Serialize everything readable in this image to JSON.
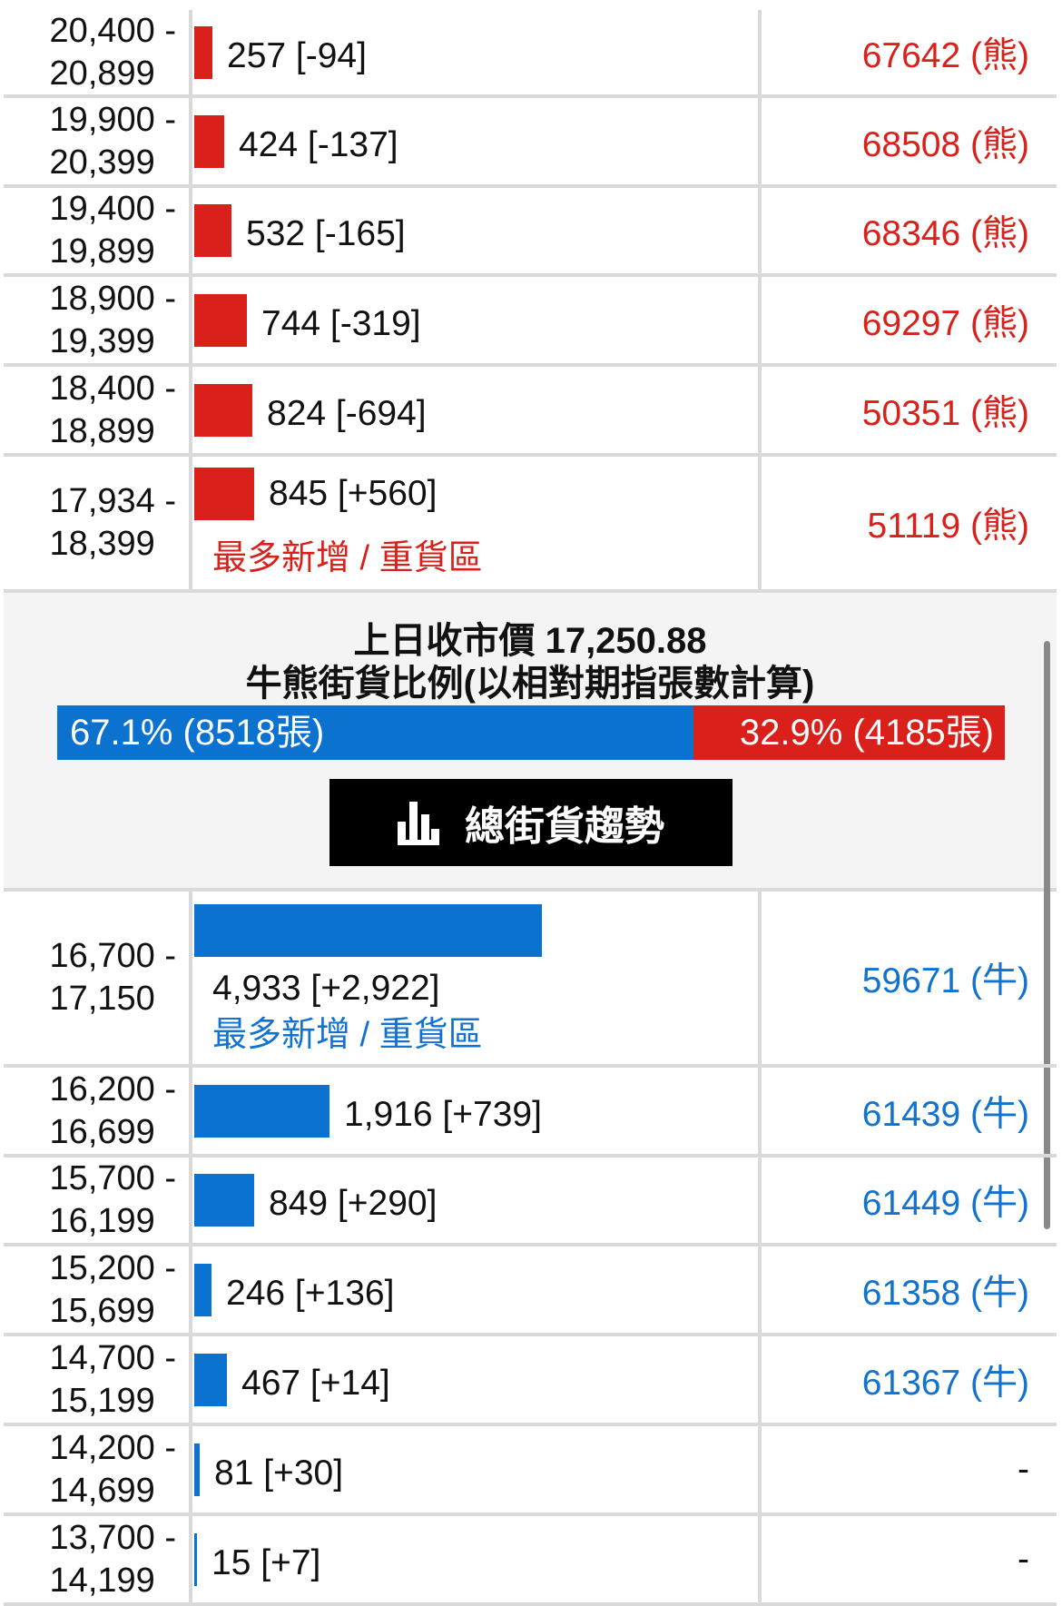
{
  "bear_rows": [
    {
      "range": "20,400 -\n20,899",
      "value": 257,
      "label": "257 [-94]",
      "count": "67642 (熊)"
    },
    {
      "range": "19,900 -\n20,399",
      "value": 424,
      "label": "424 [-137]",
      "count": "68508 (熊)"
    },
    {
      "range": "19,400 -\n19,899",
      "value": 532,
      "label": "532 [-165]",
      "count": "68346 (熊)"
    },
    {
      "range": "18,900 -\n19,399",
      "value": 744,
      "label": "744 [-319]",
      "count": "69297 (熊)"
    },
    {
      "range": "18,400 -\n18,899",
      "value": 824,
      "label": "824 [-694]",
      "count": "50351 (熊)"
    },
    {
      "range": "17,934 -\n18,399",
      "value": 845,
      "label": "845 [+560]",
      "count": "51119 (熊)",
      "note": "最多新增 / 重貨區"
    }
  ],
  "summary": {
    "prev_close": "上日收市價 17,250.88",
    "subtitle": "牛熊街貨比例(以相對期指張數計算)",
    "bull_pct": 67.1,
    "bull_label": "67.1% (8518張)",
    "bear_label": "32.9% (4185張)",
    "button_label": "總街貨趨勢",
    "button_icon": "bar-chart-icon"
  },
  "bull_rows": [
    {
      "range": "16,700 -\n17,150",
      "value": 4933,
      "label": "4,933 [+2,922]",
      "count": "59671 (牛)",
      "note": "最多新增 / 重貨區"
    },
    {
      "range": "16,200 -\n16,699",
      "value": 1916,
      "label": "1,916 [+739]",
      "count": "61439 (牛)"
    },
    {
      "range": "15,700 -\n16,199",
      "value": 849,
      "label": "849 [+290]",
      "count": "61449 (牛)"
    },
    {
      "range": "15,200 -\n15,699",
      "value": 246,
      "label": "246 [+136]",
      "count": "61358 (牛)"
    },
    {
      "range": "14,700 -\n15,199",
      "value": 467,
      "label": "467 [+14]",
      "count": "61367 (牛)"
    },
    {
      "range": "14,200 -\n14,699",
      "value": 81,
      "label": "81 [+30]",
      "count": "-"
    },
    {
      "range": "13,700 -\n14,199",
      "value": 15,
      "label": "15 [+7]",
      "count": "-"
    }
  ],
  "colors": {
    "bear": "#d9201a",
    "bull": "#0b72cf"
  },
  "bar_max": 4933
}
